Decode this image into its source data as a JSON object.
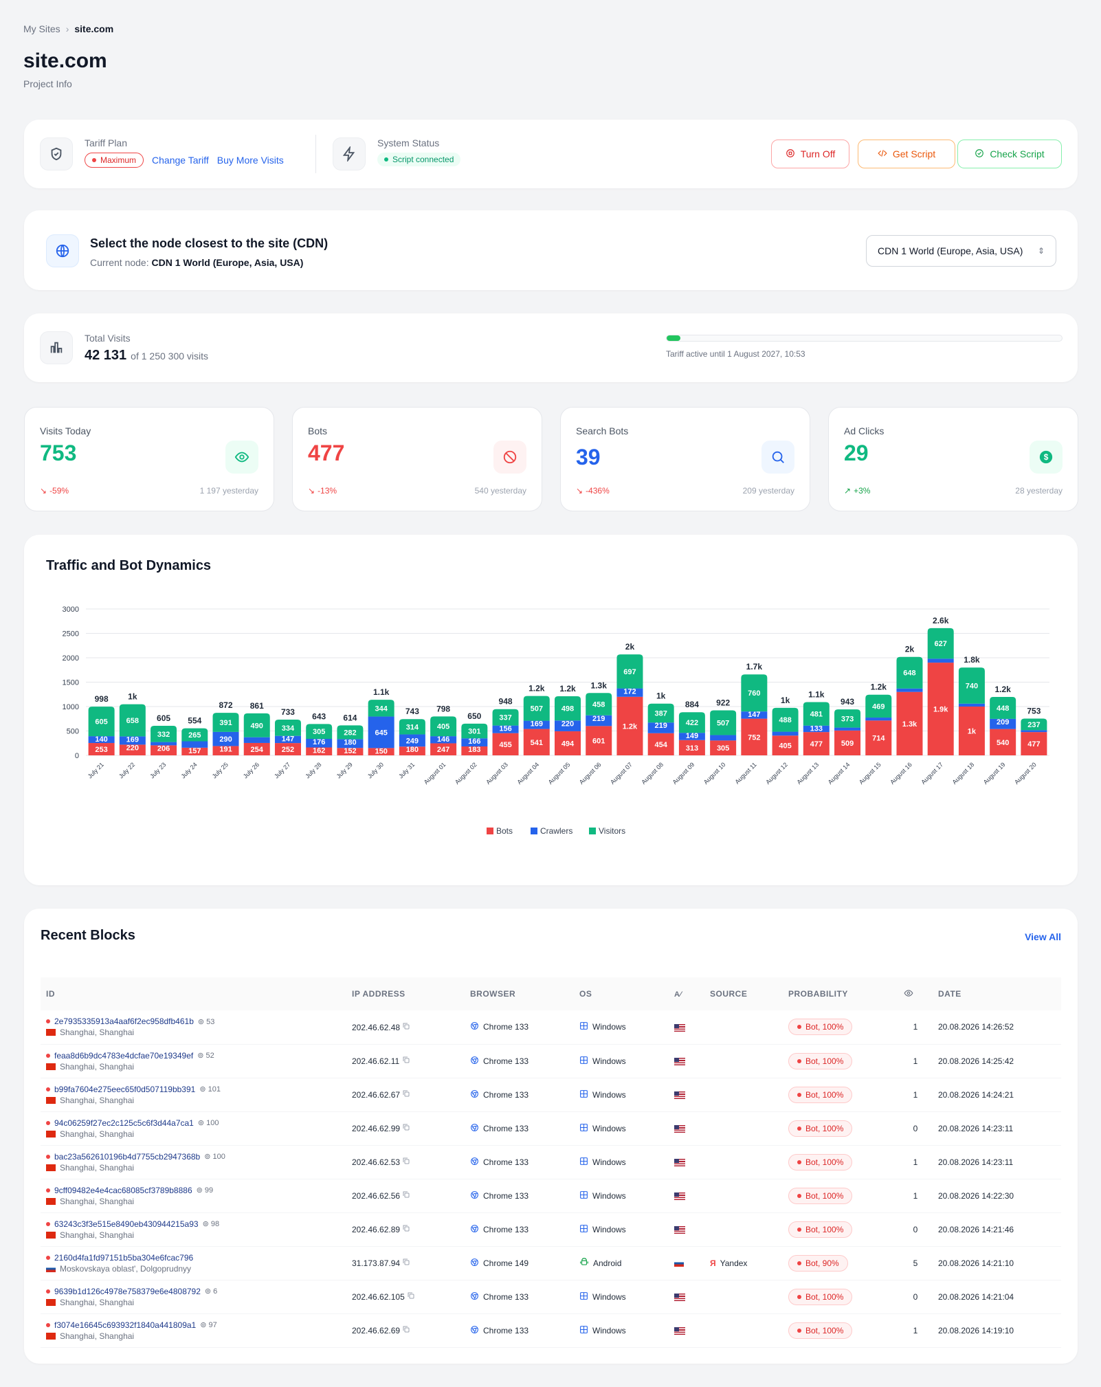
{
  "breadcrumb": {
    "parent": "My Sites",
    "current": "site.com"
  },
  "page": {
    "title": "site.com",
    "subtitle": "Project Info"
  },
  "tariff": {
    "label": "Tariff Plan",
    "plan": "Maximum",
    "change": "Change Tariff",
    "buy": "Buy More Visits"
  },
  "status": {
    "label": "System Status",
    "value": "Script connected"
  },
  "actions": {
    "turn_off": "Turn Off",
    "get_script": "Get Script",
    "check_script": "Check Script"
  },
  "cdn": {
    "title": "Select the node closest to the site (CDN)",
    "current_label": "Current node:",
    "current_value": "CDN 1 World (Europe, Asia, USA)",
    "select_value": "CDN 1 World (Europe, Asia, USA)"
  },
  "visits": {
    "label": "Total Visits",
    "value": "42 131",
    "of": "of 1 250 300 visits",
    "progress": 0.034,
    "tariff_until": "Tariff active until 1 August 2027, 10:53"
  },
  "stats": [
    {
      "title": "Visits Today",
      "value": "753",
      "change": "-59%",
      "yesterday": "1 197 yesterday",
      "color": "#10b981"
    },
    {
      "title": "Bots",
      "value": "477",
      "change": "-13%",
      "yesterday": "540 yesterday",
      "color": "#ef4444"
    },
    {
      "title": "Search Bots",
      "value": "39",
      "change": "-436%",
      "yesterday": "209 yesterday",
      "color": "#2563eb"
    },
    {
      "title": "Ad Clicks",
      "value": "29",
      "change": "+3%",
      "yesterday": "28 yesterday",
      "color": "#10b981"
    }
  ],
  "chart_title": "Traffic and Bot Dynamics",
  "chart_data": {
    "type": "bar",
    "stacked": true,
    "ylim": [
      0,
      3000
    ],
    "yticks": [
      0,
      500,
      1000,
      1500,
      2000,
      2500,
      3000
    ],
    "categories": [
      "July 21",
      "July 22",
      "July 23",
      "July 24",
      "July 25",
      "July 26",
      "July 27",
      "July 28",
      "July 29",
      "July 30",
      "July 31",
      "August 01",
      "August 02",
      "August 03",
      "August 04",
      "August 05",
      "August 06",
      "August 07",
      "August 08",
      "August 09",
      "August 10",
      "August 11",
      "August 12",
      "August 13",
      "August 14",
      "August 15",
      "August 16",
      "August 17",
      "August 18",
      "August 19",
      "August 20"
    ],
    "series": [
      {
        "name": "Bots",
        "color": "#ef4444",
        "values": [
          253,
          220,
          206,
          157,
          191,
          254,
          252,
          162,
          152,
          150,
          180,
          247,
          183,
          455,
          541,
          494,
          601,
          1200,
          454,
          313,
          305,
          752,
          405,
          477,
          509,
          714,
          1300,
          1900,
          1000,
          540,
          477
        ],
        "labels": [
          "253",
          "220",
          "206",
          "157",
          "191",
          "254",
          "252",
          "162",
          "152",
          "150",
          "180",
          "247",
          "183",
          "455",
          "541",
          "494",
          "601",
          "1.2k",
          "454",
          "313",
          "305",
          "752",
          "405",
          "477",
          "509",
          "714",
          "1.3k",
          "1.9k",
          "1k",
          "540",
          "477"
        ]
      },
      {
        "name": "Crawlers",
        "color": "#2563eb",
        "values": [
          140,
          169,
          67,
          132,
          290,
          117,
          147,
          176,
          180,
          645,
          249,
          146,
          166,
          156,
          169,
          220,
          219,
          172,
          219,
          149,
          110,
          147,
          80,
          133,
          60,
          60,
          70,
          80,
          60,
          209,
          39
        ],
        "labels": [
          "140",
          "169",
          "",
          "",
          "290",
          "",
          "147",
          "176",
          "180",
          "645",
          "249",
          "146",
          "166",
          "156",
          "169",
          "220",
          "219",
          "172",
          "219",
          "149",
          "",
          "147",
          "",
          "133",
          "",
          "",
          "",
          "",
          "",
          "209",
          ""
        ]
      },
      {
        "name": "Visitors",
        "color": "#10b981",
        "values": [
          605,
          658,
          332,
          265,
          391,
          490,
          334,
          305,
          282,
          344,
          314,
          405,
          301,
          337,
          507,
          498,
          458,
          697,
          387,
          422,
          507,
          760,
          488,
          481,
          373,
          469,
          648,
          627,
          740,
          448,
          237
        ],
        "labels": [
          "605",
          "658",
          "332",
          "265",
          "391",
          "490",
          "334",
          "305",
          "282",
          "344",
          "314",
          "405",
          "301",
          "337",
          "507",
          "498",
          "458",
          "697",
          "387",
          "422",
          "507",
          "760",
          "488",
          "481",
          "373",
          "469",
          "648",
          "627",
          "740",
          "448",
          "237"
        ]
      }
    ],
    "totals": [
      "998",
      "1k",
      "605",
      "554",
      "872",
      "861",
      "733",
      "643",
      "614",
      "1.1k",
      "743",
      "798",
      "650",
      "948",
      "1.2k",
      "1.2k",
      "1.3k",
      "2k",
      "1k",
      "884",
      "922",
      "1.7k",
      "1k",
      "1.1k",
      "943",
      "1.2k",
      "2k",
      "2.6k",
      "1.8k",
      "1.2k",
      "753"
    ],
    "legend": [
      "Bots",
      "Crawlers",
      "Visitors"
    ],
    "legend_position": "bottom-center"
  },
  "blocks": {
    "title": "Recent Blocks",
    "view_all": "View All",
    "columns": [
      "ID",
      "IP ADDRESS",
      "BROWSER",
      "OS",
      "",
      "SOURCE",
      "PROBABILITY",
      "",
      "DATE"
    ],
    "rows": [
      {
        "id": "2e7935335913a4aaf6f2ec958dfb461b",
        "hits": "53",
        "loc": "Shanghai, Shanghai",
        "flag": "cn",
        "ip": "202.46.62.48",
        "browser": "Chrome 133",
        "os": "Windows",
        "source": "",
        "prob": "Bot, 100%",
        "views": "1",
        "date": "20.08.2026 14:26:52"
      },
      {
        "id": "feaa8d6b9dc4783e4dcfae70e19349ef",
        "hits": "52",
        "loc": "Shanghai, Shanghai",
        "flag": "cn",
        "ip": "202.46.62.11",
        "browser": "Chrome 133",
        "os": "Windows",
        "source": "",
        "prob": "Bot, 100%",
        "views": "1",
        "date": "20.08.2026 14:25:42"
      },
      {
        "id": "b99fa7604e275eec65f0d507119bb391",
        "hits": "101",
        "loc": "Shanghai, Shanghai",
        "flag": "cn",
        "ip": "202.46.62.67",
        "browser": "Chrome 133",
        "os": "Windows",
        "source": "",
        "prob": "Bot, 100%",
        "views": "1",
        "date": "20.08.2026 14:24:21"
      },
      {
        "id": "94c06259f27ec2c125c5c6f3d44a7ca1",
        "hits": "100",
        "loc": "Shanghai, Shanghai",
        "flag": "cn",
        "ip": "202.46.62.99",
        "browser": "Chrome 133",
        "os": "Windows",
        "source": "",
        "prob": "Bot, 100%",
        "views": "0",
        "date": "20.08.2026 14:23:11"
      },
      {
        "id": "bac23a562610196b4d7755cb2947368b",
        "hits": "100",
        "loc": "Shanghai, Shanghai",
        "flag": "cn",
        "ip": "202.46.62.53",
        "browser": "Chrome 133",
        "os": "Windows",
        "source": "",
        "prob": "Bot, 100%",
        "views": "1",
        "date": "20.08.2026 14:23:11"
      },
      {
        "id": "9cff09482e4e4cac68085cf3789b8886",
        "hits": "99",
        "loc": "Shanghai, Shanghai",
        "flag": "cn",
        "ip": "202.46.62.56",
        "browser": "Chrome 133",
        "os": "Windows",
        "source": "",
        "prob": "Bot, 100%",
        "views": "1",
        "date": "20.08.2026 14:22:30"
      },
      {
        "id": "63243c3f3e515e8490eb430944215a93",
        "hits": "98",
        "loc": "Shanghai, Shanghai",
        "flag": "cn",
        "ip": "202.46.62.89",
        "browser": "Chrome 133",
        "os": "Windows",
        "source": "",
        "prob": "Bot, 100%",
        "views": "0",
        "date": "20.08.2026 14:21:46"
      },
      {
        "id": "2160d4fa1fd97151b5ba304e6fcac796",
        "hits": "",
        "loc": "Moskovskaya oblast', Dolgoprudnyy",
        "flag": "ru",
        "ip": "31.173.87.94",
        "browser": "Chrome 149",
        "os": "Android",
        "source": "Yandex",
        "prob": "Bot, 90%",
        "views": "5",
        "date": "20.08.2026 14:21:10"
      },
      {
        "id": "9639b1d126c4978e758379e6e4808792",
        "hits": "6",
        "loc": "Shanghai, Shanghai",
        "flag": "cn",
        "ip": "202.46.62.105",
        "browser": "Chrome 133",
        "os": "Windows",
        "source": "",
        "prob": "Bot, 100%",
        "views": "0",
        "date": "20.08.2026 14:21:04"
      },
      {
        "id": "f3074e16645c693932f1840a441809a1",
        "hits": "97",
        "loc": "Shanghai, Shanghai",
        "flag": "cn",
        "ip": "202.46.62.69",
        "browser": "Chrome 133",
        "os": "Windows",
        "source": "",
        "prob": "Bot, 100%",
        "views": "1",
        "date": "20.08.2026 14:19:10"
      }
    ]
  }
}
